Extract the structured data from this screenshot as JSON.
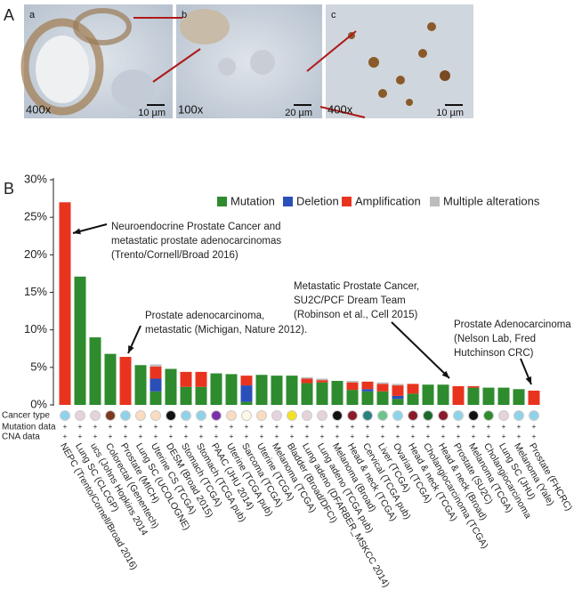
{
  "figure": {
    "panel_a": {
      "label": "A",
      "images": [
        {
          "letter": "a",
          "magnification": "400x",
          "scale": "10 µm"
        },
        {
          "letter": "b",
          "magnification": "100x",
          "scale": "20 µm"
        },
        {
          "letter": "c",
          "magnification": "400x",
          "scale": "10 µm"
        }
      ]
    }
  },
  "chart_data": {
    "type": "bar",
    "stacked": true,
    "panel_label": "B",
    "categories": [
      "NEPC (Trento/Cornell/Broad 2016)",
      "Lung SC (CLCGP)",
      "ucs (Johns Hopkins 2014",
      "Colorectal (Genentech)",
      "Prostate (MICH)",
      "Lung SC (UCOLOGNE)",
      "Uterine CS (TCGA)",
      "DESM (Broad 2015)",
      "Stomach (TCGA)",
      "Stomach (TCGA pub)",
      "PAAC (JHU 2014)",
      "Uterine (TCGA pub)",
      "Sarcoma (TCGA)",
      "Uterine (TCGA)",
      "Melanoma (TCGA)",
      "Bladder (Broad/DFCI)",
      "Lung adeno (DFARBER_MSKCC 2014)",
      "Lung adeno (TCGA pub)",
      "Melanoma (Broad)",
      "Head & neck (TCGA)",
      "Cervical (TCGA pub)",
      "Liver (TCGA)",
      "Ovarian (TCGA)",
      "Head & neck (TCGA)",
      "Cholangiocarcinoma (TCGA)",
      "Head & neck (Broad)",
      "Prostate (SU2C)",
      "Melanoma (TCGA)",
      "Cholangiocarcinoma",
      "Lung SC (JHU)",
      "Melanoma (Yale)",
      "Prostate (FHCRC)"
    ],
    "series": [
      {
        "name": "Mutation",
        "color": "#2e8b2e",
        "values": [
          0,
          17.1,
          9,
          6.8,
          0,
          5.3,
          1.8,
          4.8,
          2.4,
          2.4,
          4.2,
          4.1,
          0.4,
          4.0,
          3.9,
          3.9,
          2.9,
          3.0,
          3.2,
          2.0,
          1.8,
          1.8,
          0.8,
          1.5,
          2.7,
          2.7,
          0,
          2.3,
          2.3,
          2.3,
          2.1,
          0
        ]
      },
      {
        "name": "Deletion",
        "color": "#2a4fb8",
        "values": [
          0,
          0,
          0,
          0,
          0,
          0,
          1.7,
          0,
          0,
          0,
          0,
          0,
          2.2,
          0,
          0,
          0,
          0,
          0,
          0,
          0,
          0.3,
          0,
          0.4,
          0,
          0,
          0,
          0,
          0,
          0,
          0,
          0,
          0
        ]
      },
      {
        "name": "Amplification",
        "color": "#e8341f",
        "values": [
          27,
          0,
          0,
          0,
          6.4,
          0,
          1.6,
          0,
          2.0,
          2.0,
          0,
          0,
          1.3,
          0,
          0,
          0,
          0.6,
          0.3,
          0,
          1.0,
          1.0,
          1.0,
          1.4,
          1.3,
          0,
          0,
          2.5,
          0.2,
          0,
          0,
          0,
          1.9
        ]
      },
      {
        "name": "Multiple alterations",
        "color": "#bdbdbd",
        "values": [
          0,
          0,
          0,
          0,
          0,
          0,
          0.3,
          0,
          0,
          0,
          0,
          0,
          0,
          0,
          0,
          0,
          0.2,
          0.2,
          0,
          0.2,
          0,
          0.2,
          0.2,
          0,
          0,
          0,
          0,
          0,
          0,
          0,
          0,
          0
        ]
      }
    ],
    "ylim": [
      0,
      30
    ],
    "yticks": [
      {
        "value": 0,
        "label": "0%"
      },
      {
        "value": 5,
        "label": "5%"
      },
      {
        "value": 10,
        "label": "10%"
      },
      {
        "value": 15,
        "label": "15%"
      },
      {
        "value": 20,
        "label": "20%"
      },
      {
        "value": 25,
        "label": "25%"
      },
      {
        "value": 30,
        "label": "30%"
      }
    ],
    "legend": "top",
    "track_labels": [
      "Cancer type",
      "Mutation data",
      "CNA data"
    ],
    "cancer_type_colors": [
      "#8fd3ea",
      "#e6d2dc",
      "#e6d2dc",
      "#7a3a1c",
      "#8fd3ea",
      "#fbdcc0",
      "#fbdcc0",
      "#111111",
      "#8fd3ea",
      "#8fd3ea",
      "#7a2fa8",
      "#fbdcc0",
      "#fdf8e6",
      "#fbdcc0",
      "#e6d2dc",
      "#f2e224",
      "#e6d2dc",
      "#e6d2dc",
      "#111111",
      "#8b1a2a",
      "#2a8080",
      "#6cc38c",
      "#8fd3ea",
      "#8b1a2a",
      "#1c6a2c",
      "#8b1a2a",
      "#8fd3ea",
      "#111111",
      "#2e8b2e",
      "#e6d2dc",
      "#8fd3ea",
      "#8fd3ea"
    ],
    "mutation_data": [
      "+",
      "+",
      "+",
      "+",
      "+",
      "+",
      "+",
      "+",
      "+",
      "+",
      "+",
      "+",
      "+",
      "+",
      "+",
      "+",
      "+",
      "+",
      "+",
      "+",
      "+",
      "+",
      "+",
      "+",
      "+",
      "+",
      "+",
      "+",
      "+",
      "+",
      "+",
      "+"
    ],
    "cna_data": [
      "+",
      "+",
      "+",
      "+",
      "+",
      "+",
      "+",
      "+",
      "+",
      "+",
      "+",
      "+",
      "+",
      "+",
      "+",
      "+",
      "+",
      "+",
      "+",
      "+",
      "+",
      "+",
      "+",
      "+",
      "+",
      "+",
      "+",
      "+",
      "+",
      "+",
      "+",
      "+"
    ],
    "annotations": [
      [
        "Neuroendocrine Prostate Cancer and",
        "metastatic prostate adenocarcinomas",
        "(Trento/Cornell/Broad 2016)"
      ],
      [
        "Prostate adenocarcinoma,",
        " metastatic (Michigan, Nature 2012)."
      ],
      [
        "Metastatic Prostate Cancer,",
        " SU2C/PCF Dream Team",
        "(Robinson et al., Cell 2015)"
      ],
      [
        "Prostate Adenocarcinoma",
        "(Nelson Lab, Fred",
        "Hutchinson CRC)"
      ]
    ]
  }
}
